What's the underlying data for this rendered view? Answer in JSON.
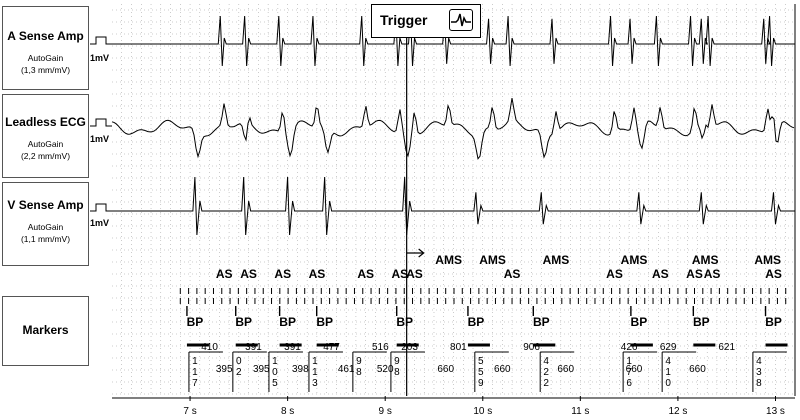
{
  "channels": [
    {
      "name": "A Sense Amp",
      "gain_mode": "AutoGain",
      "gain": "(1,3 mm/mV)",
      "calibration": "1mV"
    },
    {
      "name": "Leadless ECG",
      "gain_mode": "AutoGain",
      "gain": "(2,2 mm/mV)",
      "calibration": "1mV"
    },
    {
      "name": "V Sense Amp",
      "gain_mode": "AutoGain",
      "gain": "(1,1 mm/mV)",
      "calibration": "1mV"
    }
  ],
  "markers_panel": {
    "title": "Markers"
  },
  "trigger": {
    "label": "Trigger",
    "icon": "waveform-icon"
  },
  "marker_row1": [
    {
      "t": 7.35,
      "text": "AS"
    },
    {
      "t": 7.6,
      "text": "AS"
    },
    {
      "t": 7.95,
      "text": "AS"
    },
    {
      "t": 8.3,
      "text": "AS"
    },
    {
      "t": 8.8,
      "text": "AS"
    },
    {
      "t": 9.15,
      "text": "AS"
    },
    {
      "t": 9.3,
      "text": "AS"
    },
    {
      "t": 9.65,
      "text": "AMS"
    },
    {
      "t": 10.1,
      "text": "AMS"
    },
    {
      "t": 10.3,
      "text": "AS"
    },
    {
      "t": 10.75,
      "text": "AMS"
    },
    {
      "t": 11.35,
      "text": "AS"
    },
    {
      "t": 11.55,
      "text": "AMS"
    },
    {
      "t": 11.82,
      "text": "AS"
    },
    {
      "t": 12.17,
      "text": "AS"
    },
    {
      "t": 12.28,
      "text": "AMS"
    },
    {
      "t": 12.35,
      "text": "AS"
    },
    {
      "t": 12.92,
      "text": "AMS"
    },
    {
      "t": 12.98,
      "text": "AS"
    }
  ],
  "bp_markers": [
    7.05,
    7.55,
    8.0,
    8.38,
    9.2,
    9.93,
    10.6,
    11.6,
    12.24,
    12.98
  ],
  "intervals_top": [
    {
      "t": 7.2,
      "text": "410"
    },
    {
      "t": 7.65,
      "text": "391"
    },
    {
      "t": 8.05,
      "text": "391"
    },
    {
      "t": 8.45,
      "text": "477"
    },
    {
      "t": 8.95,
      "text": "516"
    },
    {
      "t": 9.25,
      "text": "203"
    },
    {
      "t": 9.75,
      "text": "801"
    },
    {
      "t": 10.5,
      "text": "906"
    },
    {
      "t": 11.5,
      "text": "426"
    },
    {
      "t": 11.9,
      "text": "629"
    },
    {
      "t": 12.5,
      "text": "621"
    }
  ],
  "intervals_mid": [
    {
      "t": 7.35,
      "text": "395"
    },
    {
      "t": 7.73,
      "text": "395"
    },
    {
      "t": 8.13,
      "text": "398"
    },
    {
      "t": 8.6,
      "text": "461"
    },
    {
      "t": 9.0,
      "text": "520"
    },
    {
      "t": 9.62,
      "text": "660"
    },
    {
      "t": 10.2,
      "text": "660"
    },
    {
      "t": 10.85,
      "text": "660"
    },
    {
      "t": 11.55,
      "text": "660"
    },
    {
      "t": 12.2,
      "text": "660"
    }
  ],
  "stacked_digits": [
    {
      "t": 7.05,
      "digits": [
        "1",
        "1",
        "7"
      ]
    },
    {
      "t": 7.5,
      "digits": [
        "0",
        "2"
      ]
    },
    {
      "t": 7.87,
      "digits": [
        "1",
        "0",
        "5"
      ]
    },
    {
      "t": 8.28,
      "digits": [
        "1",
        "1",
        "3"
      ]
    },
    {
      "t": 8.73,
      "digits": [
        "9",
        "8"
      ]
    },
    {
      "t": 9.12,
      "digits": [
        "9",
        "8"
      ]
    },
    {
      "t": 9.98,
      "digits": [
        "5",
        "5",
        "9"
      ]
    },
    {
      "t": 10.65,
      "digits": [
        "4",
        "2",
        "2"
      ]
    },
    {
      "t": 11.5,
      "digits": [
        "1",
        "7",
        "6"
      ]
    },
    {
      "t": 11.9,
      "digits": [
        "4",
        "1",
        "0"
      ]
    },
    {
      "t": 12.83,
      "digits": [
        "4",
        "3",
        "8"
      ]
    }
  ],
  "time_axis": {
    "ticks": [
      7,
      8,
      9,
      10,
      11,
      12,
      13
    ],
    "labels": [
      "7 s",
      "8 s",
      "9 s",
      "10 s",
      "11 s",
      "12 s",
      "13 s"
    ],
    "range": [
      6.2,
      13.2
    ]
  },
  "trigger_time": 9.22,
  "colors": {
    "trace": "#000000",
    "grid": "#9a9a9a",
    "panel_border": "#555555"
  }
}
